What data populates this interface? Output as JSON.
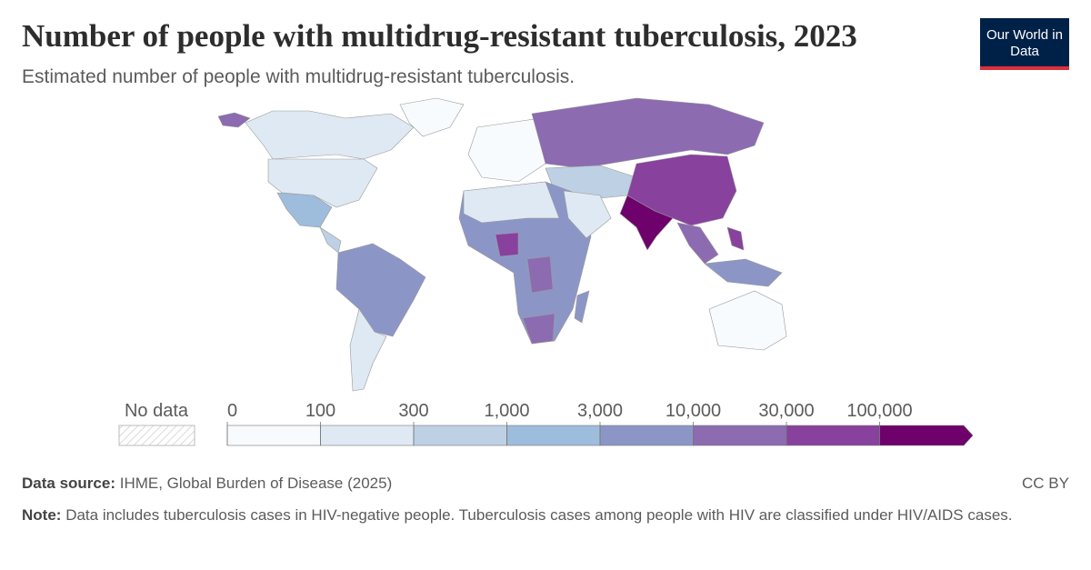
{
  "title": "Number of people with multidrug-resistant tuberculosis, 2023",
  "subtitle": "Estimated number of people with multidrug-resistant tuberculosis.",
  "logo": "Our World in Data",
  "legend": {
    "no_data": "No data",
    "ticks": [
      0,
      100,
      300,
      {
        "value": 1000,
        "label": "1,000"
      },
      {
        "value": 3000,
        "label": "3,000"
      },
      {
        "value": 10000,
        "label": "10,000"
      },
      {
        "value": 30000,
        "label": "30,000"
      },
      {
        "value": 100000,
        "label": "100,000"
      }
    ],
    "colors": [
      "#f7fbfd",
      "#dfe9f3",
      "#bdd0e4",
      "#9ebcdb",
      "#8c96c6",
      "#8c6bb1",
      "#88419d",
      "#6e016b"
    ]
  },
  "source": {
    "label": "Data source:",
    "text": "IHME, Global Burden of Disease (2025)"
  },
  "license": "CC BY",
  "note": {
    "label": "Note:",
    "text": "Data includes tuberculosis cases in HIV-negative people. Tuberculosis cases among people with HIV are classified under HIV/AIDS cases."
  }
}
